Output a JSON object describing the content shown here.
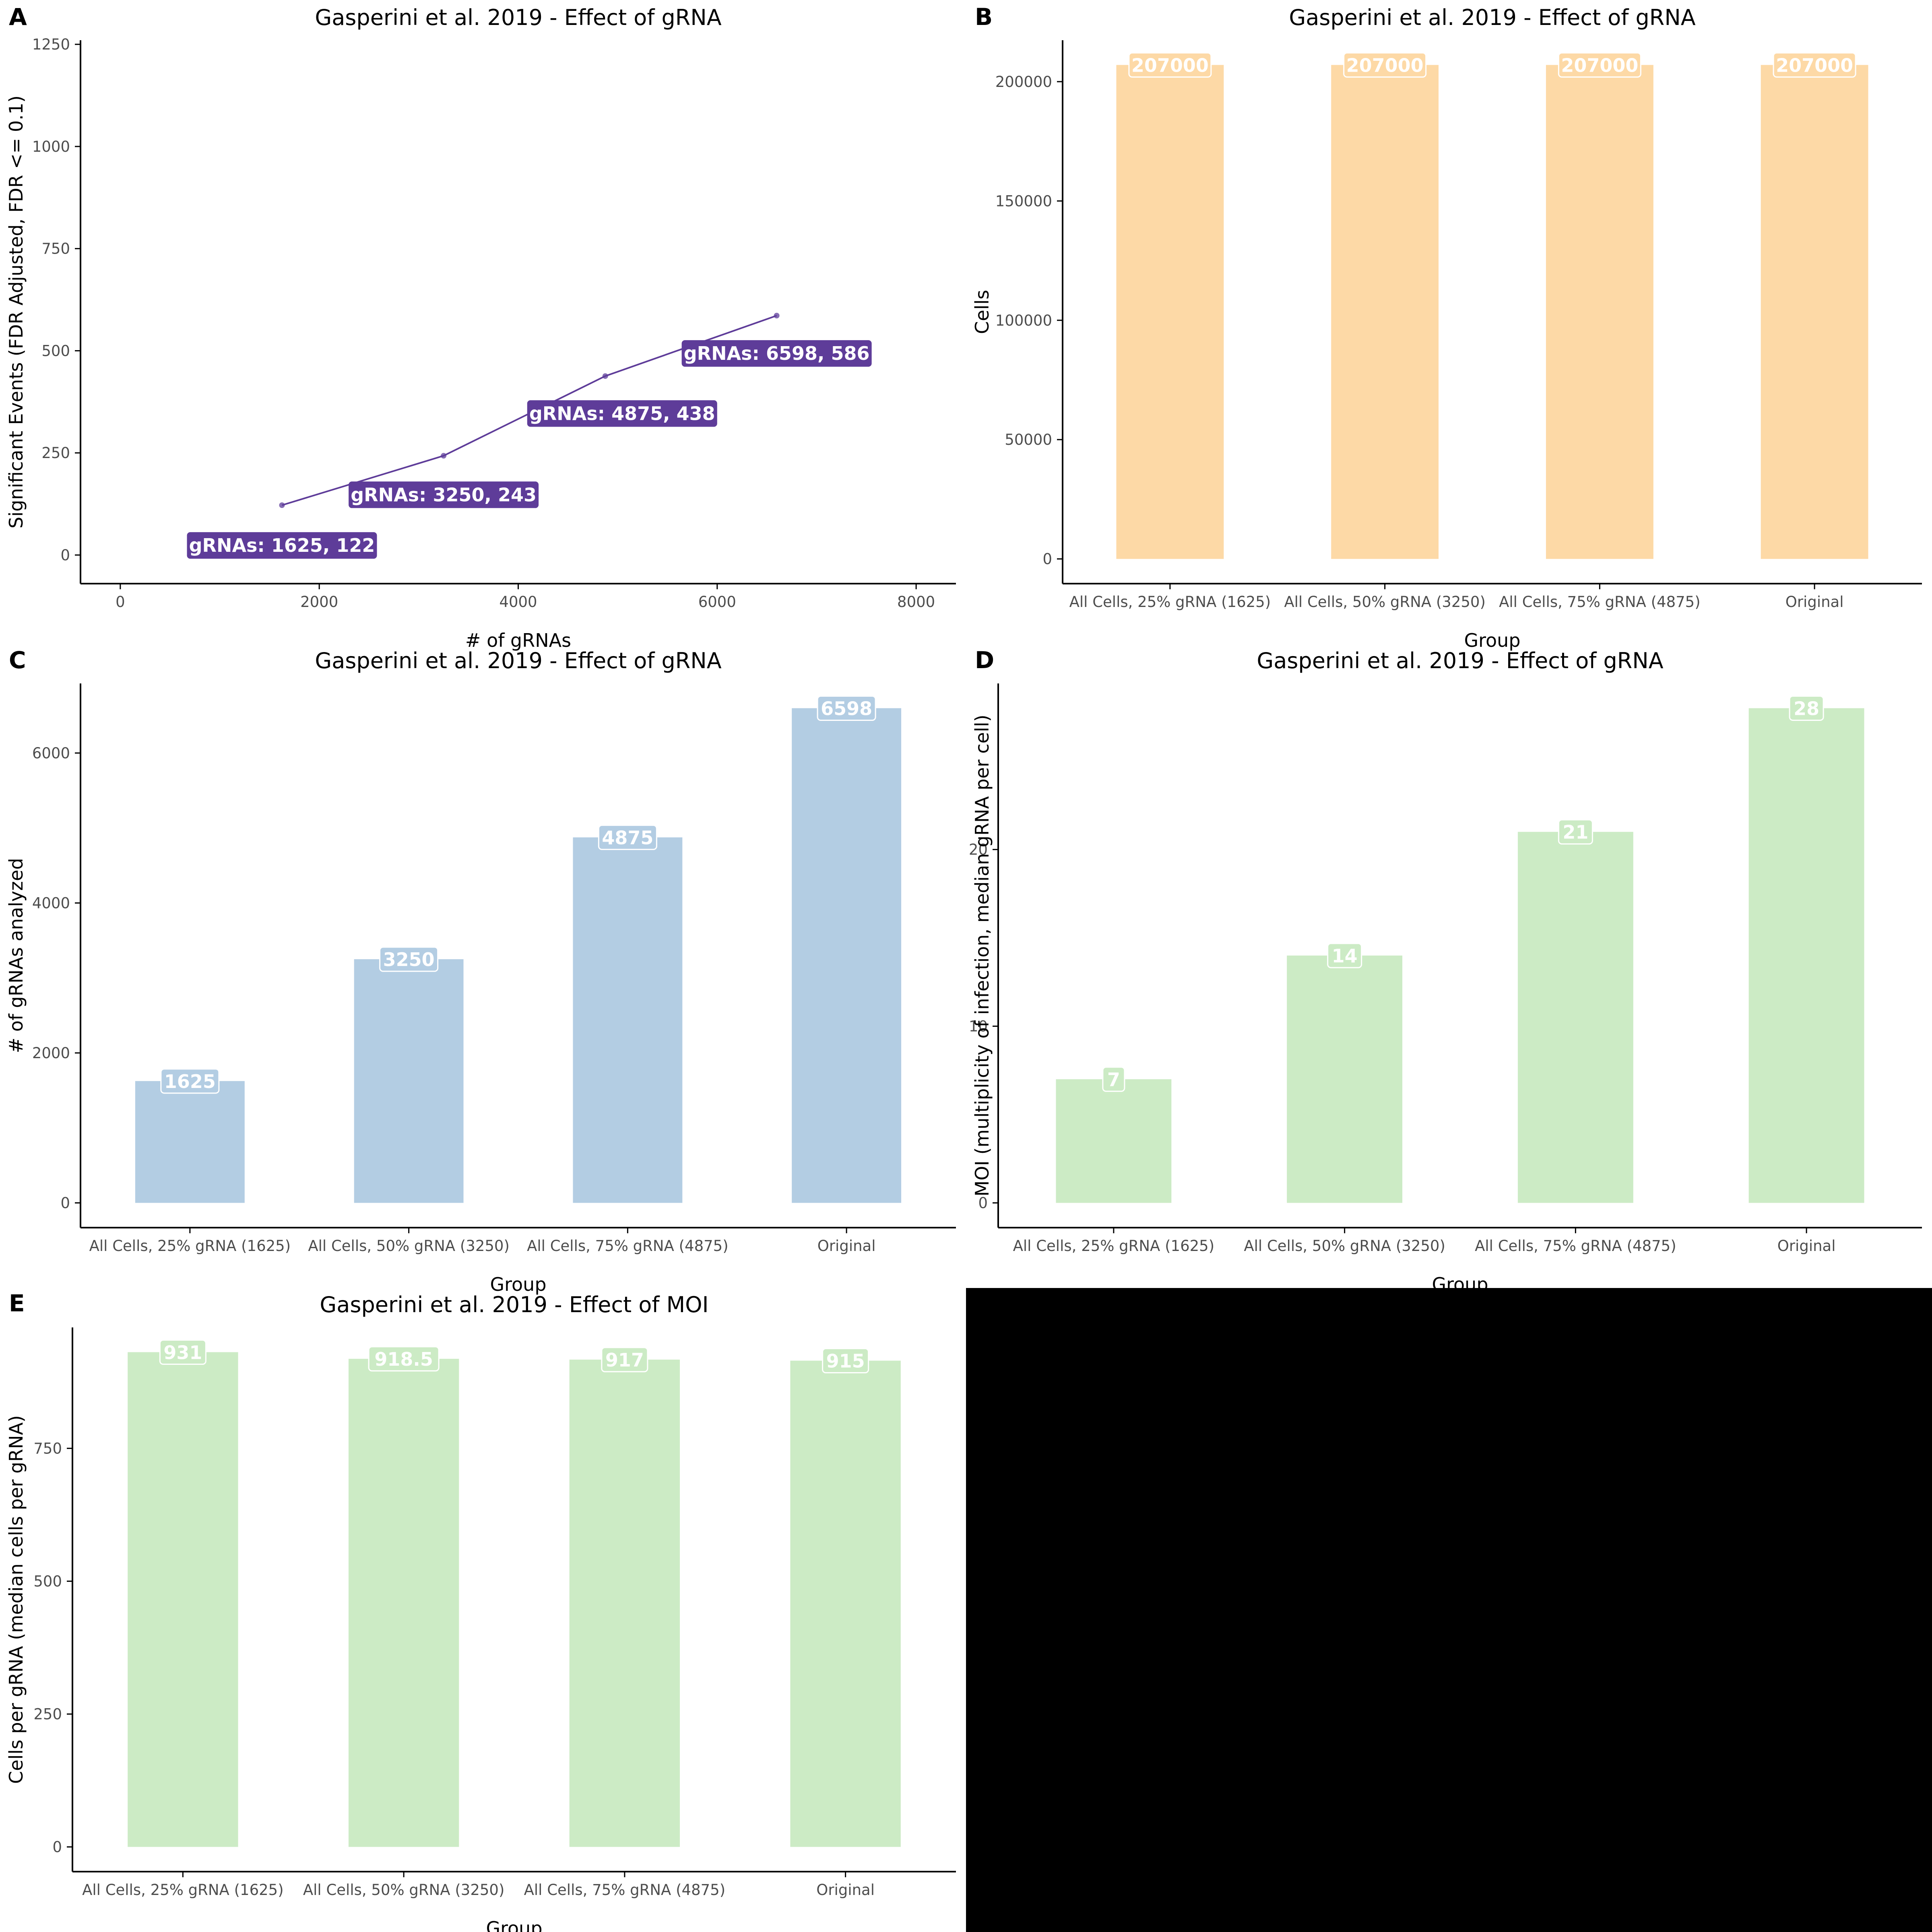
{
  "colors": {
    "panel_a_line": "#5e3c99",
    "panel_a_label_bg": "#5e3c99",
    "panel_b_bar": "#fdd9a6",
    "panel_c_bar": "#b3cde3",
    "panel_d_bar": "#ccebc5",
    "panel_e_bar": "#ccebc5",
    "axis": "#000000",
    "tick_text": "#4d4d4d",
    "empty_cell": "#000000"
  },
  "chart_data": [
    {
      "panel": "A",
      "type": "line",
      "title": "Gasperini et al. 2019 - Effect of gRNA",
      "xlabel": "# of gRNAs",
      "ylabel": "Significant Events (FDR Adjusted, FDR <= 0.1)",
      "xlim": [
        -400,
        8400
      ],
      "ylim": [
        -70,
        1260
      ],
      "xticks": [
        0,
        2000,
        4000,
        6000,
        8000
      ],
      "yticks": [
        0,
        250,
        500,
        750,
        1000,
        1250
      ],
      "x": [
        1625,
        3250,
        4875,
        6598
      ],
      "y": [
        122,
        243,
        438,
        586
      ],
      "point_labels": [
        "gRNAs: 1625, 122",
        "gRNAs: 3250, 243",
        "gRNAs: 4875, 438",
        "gRNAs: 6598, 586"
      ],
      "grid": false
    },
    {
      "panel": "B",
      "type": "bar",
      "title": "Gasperini et al. 2019 - Effect of gRNA",
      "xlabel": "Group",
      "ylabel": "Cells",
      "categories": [
        "All Cells, 25% gRNA (1625)",
        "All Cells, 50% gRNA (3250)",
        "All Cells, 75% gRNA (4875)",
        "Original"
      ],
      "values": [
        207000,
        207000,
        207000,
        207000
      ],
      "bar_labels": [
        "207000",
        "207000",
        "207000",
        "207000"
      ],
      "ylim": [
        -10350,
        217350
      ],
      "yticks": [
        0,
        50000,
        100000,
        150000,
        200000
      ],
      "grid": false
    },
    {
      "panel": "C",
      "type": "bar",
      "title": "Gasperini et al. 2019 - Effect of gRNA",
      "xlabel": "Group",
      "ylabel": "# of gRNAs analyzed",
      "categories": [
        "All Cells, 25% gRNA (1625)",
        "All Cells, 50% gRNA (3250)",
        "All Cells, 75% gRNA (4875)",
        "Original"
      ],
      "values": [
        1625,
        3250,
        4875,
        6598
      ],
      "bar_labels": [
        "1625",
        "3250",
        "4875",
        "6598"
      ],
      "ylim": [
        -330,
        6928
      ],
      "yticks": [
        0,
        2000,
        4000,
        6000
      ],
      "grid": false
    },
    {
      "panel": "D",
      "type": "bar",
      "title": "Gasperini et al. 2019 - Effect of gRNA",
      "xlabel": "Group",
      "ylabel": "MOI (multiplicity of infection, median gRNA per cell)",
      "categories": [
        "All Cells, 25% gRNA (1625)",
        "All Cells, 50% gRNA (3250)",
        "All Cells, 75% gRNA (4875)",
        "Original"
      ],
      "values": [
        7,
        14,
        21,
        28
      ],
      "bar_labels": [
        "7",
        "14",
        "21",
        "28"
      ],
      "ylim": [
        -1.4,
        29.4
      ],
      "yticks": [
        0,
        10,
        20
      ],
      "grid": false
    },
    {
      "panel": "E",
      "type": "bar",
      "title": "Gasperini et al. 2019 - Effect of MOI",
      "xlabel": "Group",
      "ylabel": "Cells per gRNA (median cells per gRNA)",
      "categories": [
        "All Cells, 25% gRNA (1625)",
        "All Cells, 50% gRNA (3250)",
        "All Cells, 75% gRNA (4875)",
        "Original"
      ],
      "values": [
        931,
        918.5,
        917,
        915
      ],
      "bar_labels": [
        "931",
        "918.5",
        "917",
        "915"
      ],
      "ylim": [
        -46.5,
        977.5
      ],
      "yticks": [
        0,
        250,
        500,
        750
      ],
      "grid": false
    }
  ]
}
